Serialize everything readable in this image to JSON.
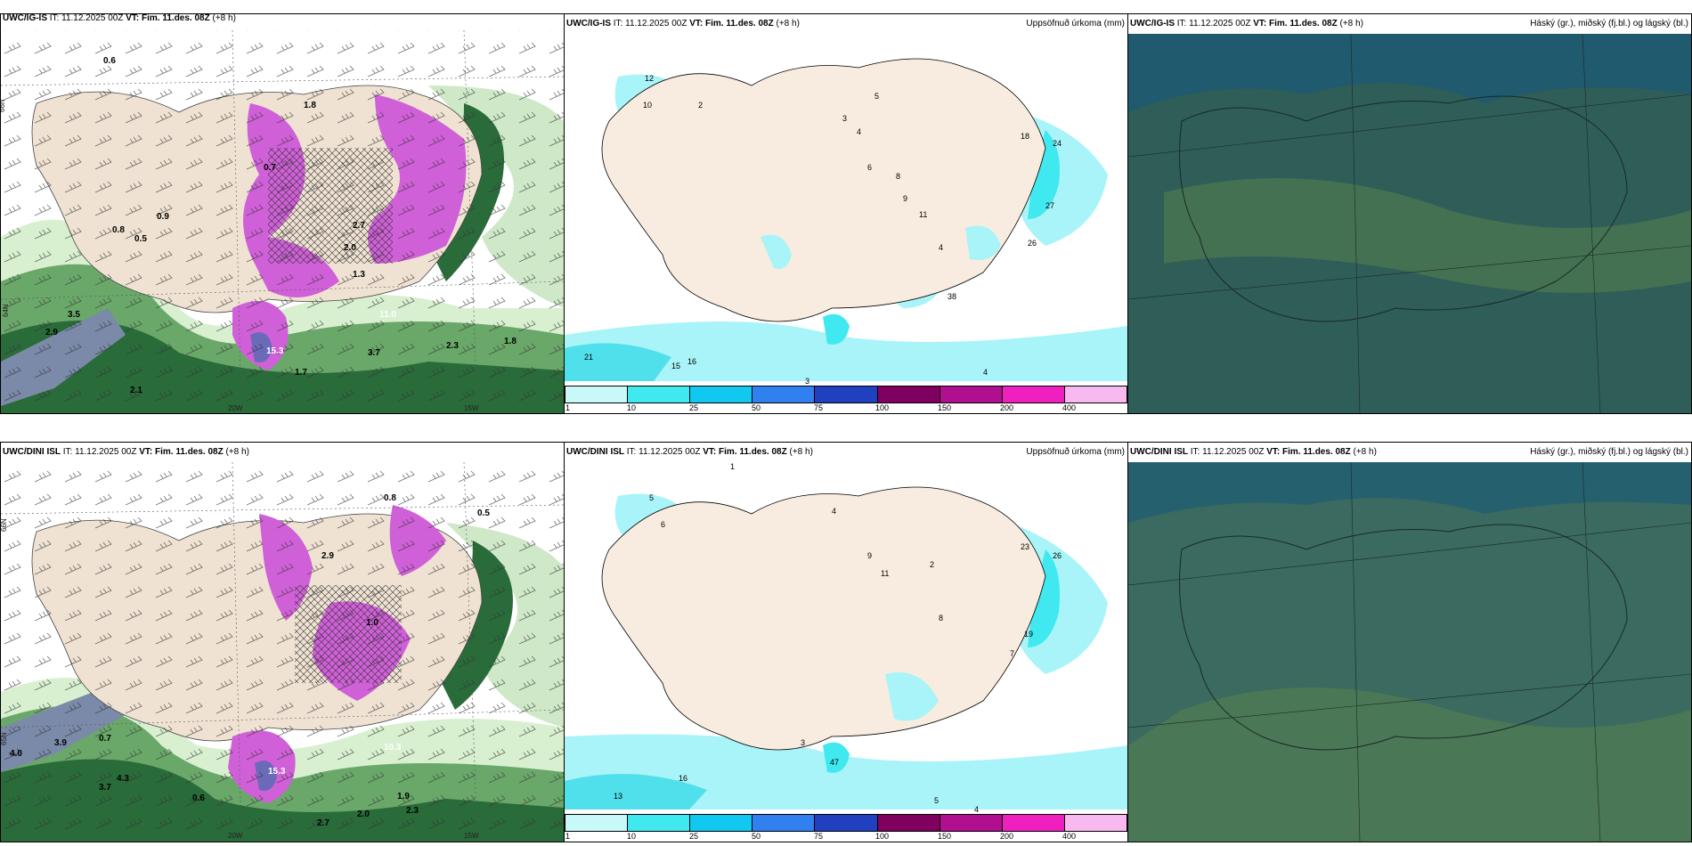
{
  "top_row": {
    "panel_a": {
      "model": "UWC/IG-IS",
      "it_label": "IT:",
      "it_value": "11.12.2025 00Z",
      "vt_label": "VT: Fim. 11.des. 08Z",
      "lead": "(+8 h)"
    },
    "panel_b": {
      "model": "UWC/IG-IS",
      "it_label": "IT:",
      "it_value": "11.12.2025 00Z",
      "vt_label": "VT: Fim. 11.des. 08Z",
      "lead": "(+8 h)",
      "right_title": "Uppsöfnuð úrkoma (mm)"
    },
    "panel_c": {
      "model": "UWC/IG-IS",
      "it_label": "IT:",
      "it_value": "11.12.2025 00Z",
      "vt_label": "VT: Fim. 11.des. 08Z",
      "lead": "(+8 h)",
      "right_title": "Háský (gr.), miðský (fj.bl.) og lágský (bl.)"
    }
  },
  "bottom_row": {
    "panel_a": {
      "model": "UWC/DINI ISL",
      "it_label": "IT:",
      "it_value": "11.12.2025 00Z",
      "vt_label": "VT: Fim. 11.des. 08Z",
      "lead": "(+8 h)"
    },
    "panel_b": {
      "model": "UWC/DINI ISL",
      "it_label": "IT:",
      "it_value": "11.12.2025 00Z",
      "vt_label": "VT: Fim. 11.des. 08Z",
      "lead": "(+8 h)",
      "right_title": "Uppsöfnuð úrkoma (mm)"
    },
    "panel_c": {
      "model": "UWC/DINI ISL",
      "it_label": "IT:",
      "it_value": "11.12.2025 00Z",
      "vt_label": "VT: Fim. 11.des. 08Z",
      "lead": "(+8 h)",
      "right_title": "Háský (gr.), miðský (fj.bl.) og lágský (bl.)"
    }
  },
  "axis_labels": {
    "lat66": "66N",
    "lat65": "65N",
    "lat64": "64N",
    "lon20": "20W",
    "lon15": "15W"
  },
  "colorbar": {
    "ticks": [
      "1",
      "10",
      "25",
      "50",
      "75",
      "100",
      "150",
      "200",
      "400"
    ],
    "colors": [
      "#c8f8f8",
      "#40e8f0",
      "#10c8f0",
      "#3080f0",
      "#2040c0",
      "#800060",
      "#b01090",
      "#f020c0",
      "#f8b8f0"
    ]
  },
  "precip_labels_top": [
    "12",
    "10",
    "2",
    "3",
    "5",
    "4",
    "6",
    "8",
    "9",
    "11",
    "18",
    "24",
    "27",
    "26",
    "38",
    "4",
    "21",
    "15",
    "16",
    "3",
    "4"
  ],
  "precip_labels_bottom": [
    "5",
    "6",
    "1",
    "4",
    "9",
    "11",
    "2",
    "8",
    "23",
    "26",
    "19",
    "7",
    "3",
    "47",
    "16",
    "13",
    "5",
    "4"
  ],
  "wind_labels_top": [
    "0.6",
    "0.9",
    "0.8",
    "0.5",
    "0.7",
    "1.8",
    "2.7",
    "3.5",
    "2.9",
    "2.3",
    "2.1",
    "1.3",
    "2.0",
    "1.7",
    "1.8",
    "3.7",
    "15.3",
    "11.0"
  ],
  "wind_labels_bottom": [
    "0.8",
    "0.7",
    "0.5",
    "1.0",
    "2.9",
    "4.0",
    "3.9",
    "3.7",
    "4.3",
    "2.0",
    "2.3",
    "1.9",
    "0.6",
    "15.3",
    "10.3",
    "2.7"
  ]
}
